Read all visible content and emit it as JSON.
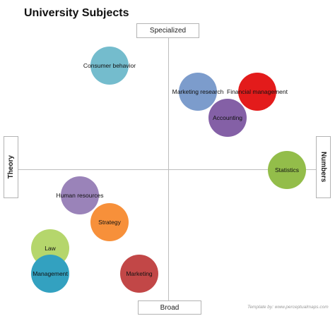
{
  "title": "University Subjects",
  "axes": {
    "top": "Specialized",
    "bottom": "Broad",
    "left": "Theory",
    "right": "Numbers"
  },
  "subjects": [
    {
      "label": "Consumer behavior",
      "color": "#74bccd"
    },
    {
      "label": "Marketing research",
      "color": "#7c9ccc"
    },
    {
      "label": "Financial management",
      "color": "#e31b1b"
    },
    {
      "label": "Accounting",
      "color": "#8460a6"
    },
    {
      "label": "Statistics",
      "color": "#93bd4a"
    },
    {
      "label": "Human resources",
      "color": "#9a83b9"
    },
    {
      "label": "Strategy",
      "color": "#f7903a"
    },
    {
      "label": "Law",
      "color": "#b5d66c"
    },
    {
      "label": "Management",
      "color": "#33a1c0"
    },
    {
      "label": "Marketing",
      "color": "#c24747"
    }
  ],
  "credit": "Template by: www.perceptualmaps.com"
}
